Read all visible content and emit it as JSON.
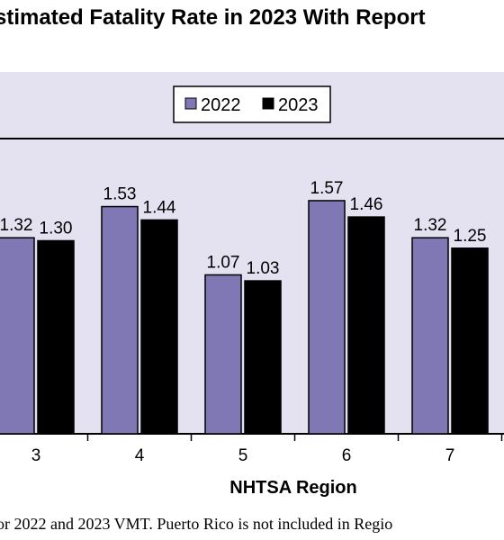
{
  "title": "stimated Fatality Rate in 2023 With Report",
  "footnote": "or 2022 and 2023 VMT. Puerto Rico is not included in Regio",
  "chart_data": {
    "type": "bar",
    "title": "stimated Fatality Rate in 2023 With Report",
    "xlabel": "NHTSA Region",
    "ylabel": "",
    "categories": [
      "3",
      "4",
      "5",
      "6",
      "7"
    ],
    "series": [
      {
        "name": "2022",
        "values": [
          1.32,
          1.53,
          1.07,
          1.57,
          1.32
        ],
        "labels": [
          "1.32",
          "1.53",
          "1.07",
          "1.57",
          "1.32"
        ],
        "color": "#8078b4"
      },
      {
        "name": "2023",
        "values": [
          1.3,
          1.44,
          1.03,
          1.46,
          1.25
        ],
        "labels": [
          "1.30",
          "1.44",
          "1.03",
          "1.46",
          "1.25"
        ],
        "color": "#000000"
      }
    ],
    "ylim": [
      0,
      2.2
    ],
    "grid": false,
    "legend": "top-center",
    "plot_background": "#e4e2f0"
  }
}
